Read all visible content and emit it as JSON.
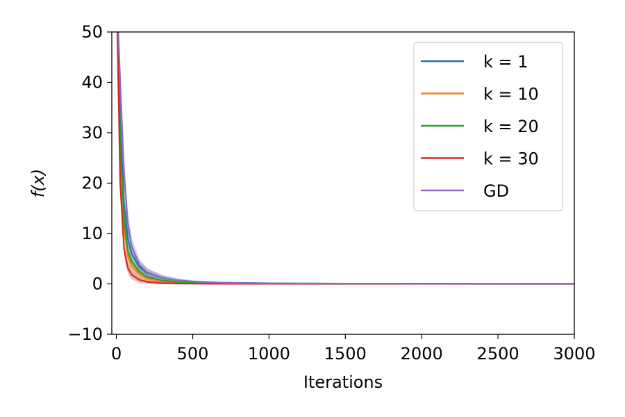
{
  "chart_data": {
    "type": "line",
    "xlabel": "Iterations",
    "ylabel": "f(x)",
    "xlim": [
      -30,
      3000
    ],
    "ylim": [
      -10,
      50
    ],
    "xticks": [
      0,
      500,
      1000,
      1500,
      2000,
      2500,
      3000
    ],
    "yticks": [
      -10,
      0,
      10,
      20,
      30,
      40,
      50
    ],
    "grid": false,
    "legend_position": "top-right",
    "series": [
      {
        "name": "k = 1",
        "color": "#1f77b4",
        "x": [
          0,
          25,
          50,
          75,
          100,
          150,
          200,
          300,
          400,
          500,
          700,
          1000,
          1500,
          2000,
          3000
        ],
        "y": [
          60,
          32,
          16,
          9,
          6,
          3.4,
          2.2,
          1.2,
          0.7,
          0.45,
          0.25,
          0.12,
          0.06,
          0.04,
          0.02
        ],
        "band": [
          3.5,
          3,
          2.5,
          2,
          1.6,
          1.2,
          0.9,
          0.6,
          0.4,
          0.25,
          0.15,
          0.08,
          0.05,
          0.03,
          0.02
        ]
      },
      {
        "name": "k = 10",
        "color": "#ff7f0e",
        "x": [
          0,
          25,
          50,
          75,
          100,
          150,
          200,
          300,
          400,
          500,
          700,
          1000,
          1500,
          2000,
          3000
        ],
        "y": [
          60,
          26,
          11,
          5.5,
          3.6,
          1.9,
          1.1,
          0.5,
          0.28,
          0.16,
          0.08,
          0.04,
          0.02,
          0.01,
          0
        ],
        "band": [
          3,
          2.5,
          2,
          1.6,
          1.3,
          0.9,
          0.6,
          0.35,
          0.2,
          0.12,
          0.06,
          0.03,
          0.02,
          0.01,
          0.01
        ]
      },
      {
        "name": "k = 20",
        "color": "#2ca02c",
        "x": [
          0,
          25,
          50,
          75,
          100,
          150,
          200,
          300,
          400,
          500,
          700,
          1000,
          1500,
          2000,
          3000
        ],
        "y": [
          60,
          28,
          13,
          6.5,
          4.4,
          2.4,
          1.4,
          0.7,
          0.38,
          0.22,
          0.1,
          0.05,
          0.02,
          0.01,
          0
        ],
        "band": [
          3,
          2.5,
          2,
          1.7,
          1.4,
          1,
          0.7,
          0.4,
          0.25,
          0.15,
          0.07,
          0.04,
          0.02,
          0.01,
          0.01
        ]
      },
      {
        "name": "k = 30",
        "color": "#d62728",
        "x": [
          0,
          25,
          50,
          75,
          100,
          150,
          200,
          300,
          400,
          500,
          700,
          1000,
          1500,
          2000,
          3000
        ],
        "y": [
          60,
          20,
          7,
          3.2,
          1.8,
          0.8,
          0.4,
          0.15,
          0.07,
          0.04,
          0.02,
          0.01,
          0,
          0,
          0
        ],
        "band": [
          2.5,
          2,
          1.6,
          1.2,
          0.9,
          0.6,
          0.4,
          0.2,
          0.1,
          0.06,
          0.03,
          0.02,
          0.01,
          0.01,
          0.01
        ]
      },
      {
        "name": "GD",
        "color": "#9467bd",
        "x": [
          0,
          25,
          50,
          75,
          100,
          150,
          200,
          300,
          400,
          500,
          700,
          1000,
          1500,
          2000,
          3000
        ],
        "y": [
          60,
          40,
          22,
          12,
          7.5,
          3.8,
          2.3,
          1.2,
          0.7,
          0.45,
          0.22,
          0.1,
          0.05,
          0.03,
          0.01
        ],
        "band": [
          4,
          3.5,
          3,
          2.4,
          1.8,
          1.2,
          0.8,
          0.45,
          0.3,
          0.2,
          0.1,
          0.05,
          0.03,
          0.02,
          0.01
        ]
      }
    ]
  }
}
